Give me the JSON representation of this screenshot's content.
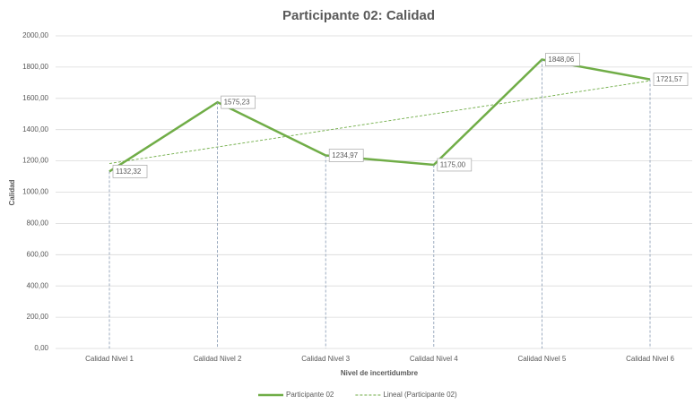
{
  "chart_data": {
    "type": "line",
    "title": "Participante 02: Calidad",
    "x_label": "Nivel de incertidumbre",
    "y_label": "Calidad",
    "categories": [
      "Calidad Nivel 1",
      "Calidad Nivel 2",
      "Calidad Nivel 3",
      "Calidad Nivel 4",
      "Calidad Nivel 5",
      "Calidad Nivel 6"
    ],
    "series": [
      {
        "name": "Participante 02",
        "color": "#70ad47",
        "values": [
          1132.32,
          1575.23,
          1234.97,
          1175.0,
          1848.06,
          1721.57
        ],
        "value_labels": [
          "1132,32",
          "1575,23",
          "1234,97",
          "1175,00",
          "1848,06",
          "1721,57"
        ]
      },
      {
        "name": "Lineal (Participante 02)",
        "color": "#70ad47",
        "dashed": true,
        "values": [
          1183.2,
          1289.1,
          1394.9,
          1500.8,
          1606.6,
          1712.5
        ]
      }
    ],
    "ylim": [
      0,
      2000
    ],
    "yticks": [
      {
        "value": 0,
        "label": "0,00"
      },
      {
        "value": 200,
        "label": "200,00"
      },
      {
        "value": 400,
        "label": "400,00"
      },
      {
        "value": 600,
        "label": "600,00"
      },
      {
        "value": 800,
        "label": "800,00"
      },
      {
        "value": 1000,
        "label": "1000,00"
      },
      {
        "value": 1200,
        "label": "1200,00"
      },
      {
        "value": 1400,
        "label": "1400,00"
      },
      {
        "value": 1600,
        "label": "1600,00"
      },
      {
        "value": 1800,
        "label": "1800,00"
      },
      {
        "value": 2000,
        "label": "2000,00"
      }
    ],
    "grid": true,
    "drop_lines": true,
    "legend": "bottom"
  }
}
